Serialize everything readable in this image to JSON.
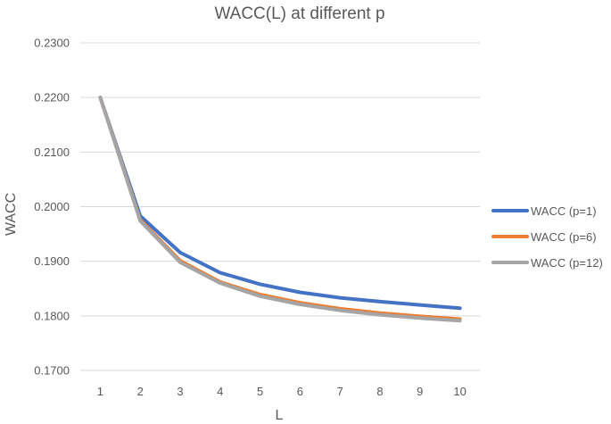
{
  "chart_data": {
    "type": "line",
    "title": "WACC(L) at different p",
    "xlabel": "L",
    "ylabel": "WACC",
    "x": [
      "1",
      "2",
      "3",
      "4",
      "5",
      "6",
      "7",
      "8",
      "9",
      "10"
    ],
    "ylim": [
      0.17,
      0.23
    ],
    "yticks": [
      "0.1700",
      "0.1800",
      "0.1900",
      "0.2000",
      "0.2100",
      "0.2200",
      "0.2300"
    ],
    "grid": true,
    "legend_position": "right",
    "series": [
      {
        "name": "WACC (p=1)",
        "color": "#4472c4",
        "values": [
          0.22,
          0.1983,
          0.1916,
          0.1879,
          0.1858,
          0.1843,
          0.1833,
          0.1826,
          0.182,
          0.1814
        ]
      },
      {
        "name": "WACC (p=6)",
        "color": "#ed7d31",
        "values": [
          0.22,
          0.1976,
          0.1901,
          0.1862,
          0.1839,
          0.1824,
          0.1813,
          0.1805,
          0.1799,
          0.1794
        ]
      },
      {
        "name": "WACC (p=12)",
        "color": "#a5a5a5",
        "values": [
          0.22,
          0.1974,
          0.1898,
          0.186,
          0.1836,
          0.1821,
          0.181,
          0.1802,
          0.1796,
          0.1791
        ]
      }
    ]
  }
}
